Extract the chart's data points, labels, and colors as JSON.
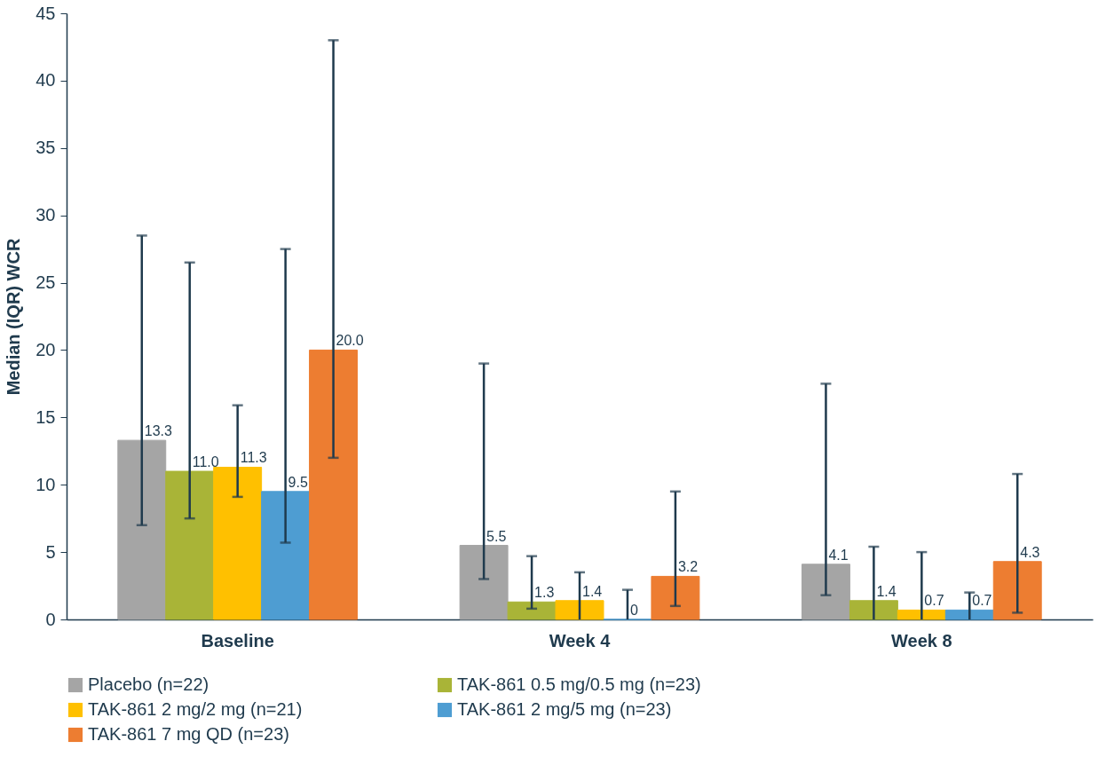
{
  "chart_data": {
    "type": "bar",
    "ylabel": "Median (IQR) WCR",
    "categories": [
      "Baseline",
      "Week 4",
      "Week 8"
    ],
    "ylim": [
      0,
      45
    ],
    "yticks": [
      0,
      5,
      10,
      15,
      20,
      25,
      30,
      35,
      40,
      45
    ],
    "grid": false,
    "legend": "bottom",
    "series": [
      {
        "name": "Placebo (n=22)",
        "color": "#a5a5a5",
        "values": [
          13.3,
          5.5,
          4.1
        ],
        "value_labels": [
          "13.3",
          "5.5",
          "4.1"
        ],
        "errors": [
          [
            7,
            28.5
          ],
          [
            3,
            19
          ],
          [
            1.8,
            17.5
          ]
        ]
      },
      {
        "name": "TAK-861 0.5 mg/0.5 mg (n=23)",
        "color": "#a9b437",
        "values": [
          11.0,
          1.3,
          1.4
        ],
        "value_labels": [
          "11.0",
          "1.3",
          "1.4"
        ],
        "errors": [
          [
            7.5,
            26.5
          ],
          [
            0.8,
            4.7
          ],
          [
            0,
            5.4
          ]
        ]
      },
      {
        "name": "TAK-861 2 mg/2 mg (n=21)",
        "color": "#ffc000",
        "values": [
          11.3,
          1.4,
          0.7
        ],
        "value_labels": [
          "11.3",
          "1.4",
          "0.7"
        ],
        "errors": [
          [
            9.1,
            15.9
          ],
          [
            0,
            3.5
          ],
          [
            0,
            5
          ]
        ]
      },
      {
        "name": "TAK-861 2 mg/5 mg (n=23)",
        "color": "#4e9dd2",
        "values": [
          9.5,
          0,
          0.7
        ],
        "value_labels": [
          "9.5",
          "0",
          "0.7"
        ],
        "errors": [
          [
            5.7,
            27.5
          ],
          [
            0,
            2.2
          ],
          [
            0,
            2
          ]
        ]
      },
      {
        "name": "TAK-861 7 mg QD (n=23)",
        "color": "#ed7d31",
        "values": [
          20.0,
          3.2,
          4.3
        ],
        "value_labels": [
          "20.0",
          "3.2",
          "4.3"
        ],
        "errors": [
          [
            12,
            43
          ],
          [
            1,
            9.5
          ],
          [
            0.5,
            10.8
          ]
        ]
      }
    ]
  }
}
